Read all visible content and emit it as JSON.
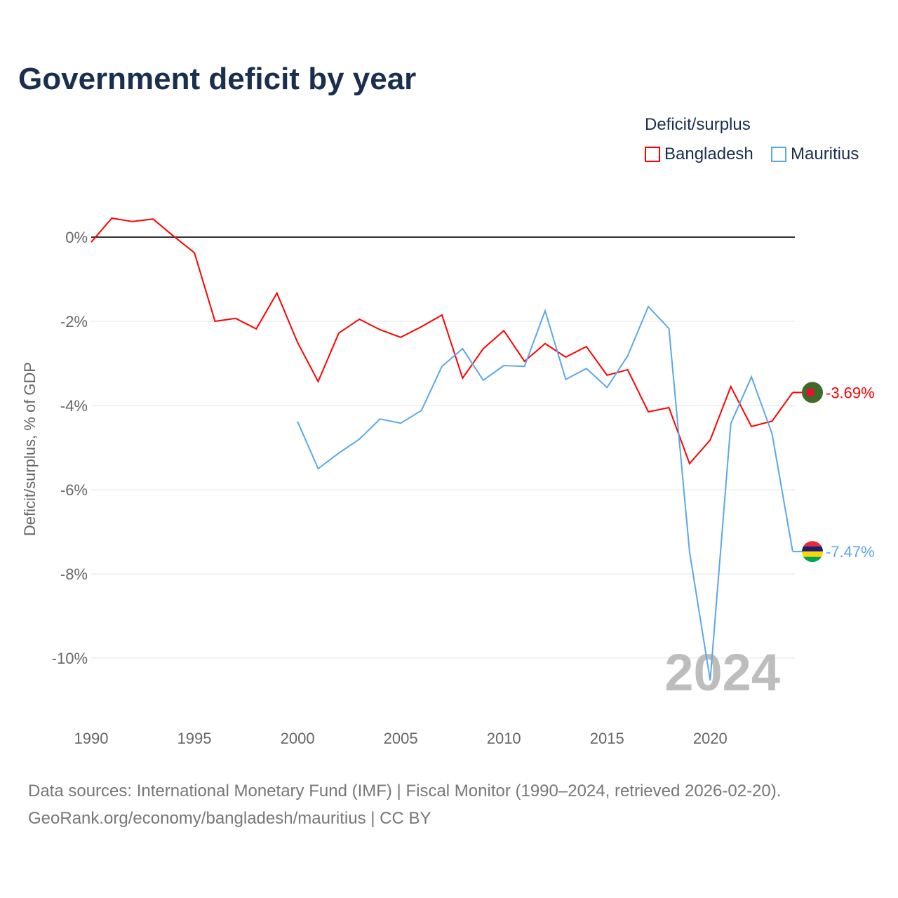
{
  "chart_data": {
    "type": "line",
    "title": "Government deficit by year",
    "ylabel": "Deficit/surplus, % of GDP",
    "xlabel": "",
    "xlim": [
      1990,
      2024
    ],
    "ylim": [
      -11.3,
      1
    ],
    "x_ticks": [
      "1990",
      "1995",
      "2000",
      "2005",
      "2010",
      "2015",
      "2020"
    ],
    "y_ticks": [
      {
        "v": 0,
        "label": "0%"
      },
      {
        "v": -2,
        "label": "-2%"
      },
      {
        "v": -4,
        "label": "-4%"
      },
      {
        "v": -6,
        "label": "-6%"
      },
      {
        "v": -8,
        "label": "-8%"
      },
      {
        "v": -10,
        "label": "-10%"
      }
    ],
    "legend_title": "Deficit/surplus",
    "legend_position": "top-right",
    "year_watermark": "2024",
    "series": [
      {
        "name": "Bangladesh",
        "color": "#ff0000",
        "end_label": "-3.69%",
        "x": [
          1990,
          1991,
          1992,
          1993,
          1994,
          1995,
          1996,
          1997,
          1998,
          1999,
          2000,
          2001,
          2002,
          2003,
          2004,
          2005,
          2006,
          2007,
          2008,
          2009,
          2010,
          2011,
          2012,
          2013,
          2014,
          2015,
          2016,
          2017,
          2018,
          2019,
          2020,
          2021,
          2022,
          2023,
          2024
        ],
        "values": [
          -0.12,
          0.45,
          0.37,
          0.43,
          0.02,
          -0.37,
          -2.0,
          -1.93,
          -2.18,
          -1.33,
          -2.5,
          -3.43,
          -2.28,
          -1.95,
          -2.2,
          -2.38,
          -2.13,
          -1.85,
          -3.35,
          -2.65,
          -2.22,
          -2.95,
          -2.53,
          -2.85,
          -2.6,
          -3.28,
          -3.15,
          -4.15,
          -4.05,
          -5.38,
          -4.82,
          -3.55,
          -4.5,
          -4.37,
          -3.69
        ]
      },
      {
        "name": "Mauritius",
        "color": "#5ba7ea",
        "end_label": "-7.47%",
        "x": [
          2000,
          2001,
          2002,
          2003,
          2004,
          2005,
          2006,
          2007,
          2008,
          2009,
          2010,
          2011,
          2012,
          2013,
          2014,
          2015,
          2016,
          2017,
          2018,
          2019,
          2020,
          2021,
          2022,
          2023,
          2024
        ],
        "values": [
          -4.38,
          -5.5,
          -5.13,
          -4.8,
          -4.32,
          -4.42,
          -4.12,
          -3.07,
          -2.65,
          -3.4,
          -3.05,
          -3.07,
          -1.75,
          -3.38,
          -3.12,
          -3.57,
          -2.82,
          -1.65,
          -2.17,
          -7.48,
          -10.53,
          -4.43,
          -3.32,
          -4.67,
          -7.47
        ]
      }
    ]
  },
  "source_lines": [
    "Data sources: International Monetary Fund (IMF) | Fiscal Monitor (1990–2024, retrieved 2026-02-20).",
    "GeoRank.org/economy/bangladesh/mauritius | CC BY"
  ]
}
